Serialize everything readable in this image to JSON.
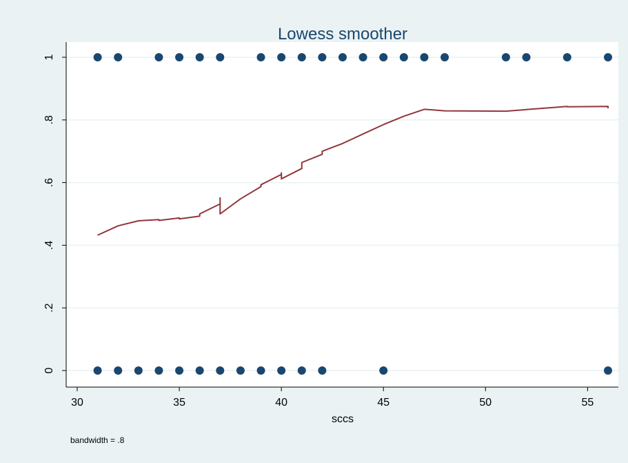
{
  "chart_data": {
    "type": "scatter",
    "title": "Lowess smoother",
    "xlabel": "sccs",
    "ylabel": "",
    "note": "bandwidth = .8",
    "xlim": [
      30,
      56
    ],
    "ylim": [
      0,
      1
    ],
    "x_ticks": [
      30,
      35,
      40,
      45,
      50,
      55
    ],
    "x_tick_labels": [
      "30",
      "35",
      "40",
      "45",
      "50",
      "55"
    ],
    "y_ticks": [
      0,
      0.2,
      0.4,
      0.6,
      0.8,
      1
    ],
    "y_tick_labels": [
      "0",
      ".2",
      ".4",
      ".6",
      ".8",
      "1"
    ],
    "grid": true,
    "colors": {
      "background": "#eaf2f3",
      "plot_area": "#ffffff",
      "grid": "#eaf2f3",
      "points": "#1a476f",
      "smooth": "#90353b",
      "title": "#1a476f",
      "text": "#000000"
    },
    "series": [
      {
        "type": "scatter",
        "points": [
          [
            31,
            1
          ],
          [
            32,
            1
          ],
          [
            34,
            1
          ],
          [
            35,
            1
          ],
          [
            36,
            1
          ],
          [
            37,
            1
          ],
          [
            39,
            1
          ],
          [
            40,
            1
          ],
          [
            41,
            1
          ],
          [
            42,
            1
          ],
          [
            43,
            1
          ],
          [
            44,
            1
          ],
          [
            45,
            1
          ],
          [
            46,
            1
          ],
          [
            47,
            1
          ],
          [
            48,
            1
          ],
          [
            51,
            1
          ],
          [
            52,
            1
          ],
          [
            54,
            1
          ],
          [
            56,
            1
          ],
          [
            31,
            0
          ],
          [
            32,
            0
          ],
          [
            33,
            0
          ],
          [
            34,
            0
          ],
          [
            35,
            0
          ],
          [
            36,
            0
          ],
          [
            37,
            0
          ],
          [
            38,
            0
          ],
          [
            39,
            0
          ],
          [
            40,
            0
          ],
          [
            41,
            0
          ],
          [
            42,
            0
          ],
          [
            45,
            0
          ],
          [
            56,
            0
          ]
        ]
      },
      {
        "type": "line",
        "points": [
          [
            31,
            0.432
          ],
          [
            32,
            0.462
          ],
          [
            33,
            0.478
          ],
          [
            34,
            0.482
          ],
          [
            34,
            0.479
          ],
          [
            35,
            0.487
          ],
          [
            35,
            0.484
          ],
          [
            36,
            0.493
          ],
          [
            36,
            0.5
          ],
          [
            37,
            0.532
          ],
          [
            37,
            0.551
          ],
          [
            37,
            0.5
          ],
          [
            38,
            0.548
          ],
          [
            39,
            0.587
          ],
          [
            39,
            0.593
          ],
          [
            40,
            0.626
          ],
          [
            40,
            0.631
          ],
          [
            40,
            0.612
          ],
          [
            41,
            0.645
          ],
          [
            41,
            0.664
          ],
          [
            42,
            0.69
          ],
          [
            42,
            0.7
          ],
          [
            43,
            0.725
          ],
          [
            44,
            0.755
          ],
          [
            45,
            0.785
          ],
          [
            46,
            0.812
          ],
          [
            47,
            0.834
          ],
          [
            48,
            0.829
          ],
          [
            51,
            0.828
          ],
          [
            52,
            0.833
          ],
          [
            54,
            0.843
          ],
          [
            54,
            0.842
          ],
          [
            56,
            0.843
          ],
          [
            56,
            0.837
          ]
        ]
      }
    ]
  }
}
